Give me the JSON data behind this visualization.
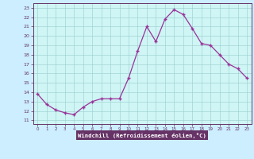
{
  "x": [
    0,
    1,
    2,
    3,
    4,
    5,
    6,
    7,
    8,
    9,
    10,
    11,
    12,
    13,
    14,
    15,
    16,
    17,
    18,
    19,
    20,
    21,
    22,
    23
  ],
  "y": [
    13.8,
    12.7,
    12.1,
    11.8,
    11.6,
    12.4,
    13.0,
    13.3,
    13.3,
    13.3,
    15.5,
    18.4,
    21.0,
    19.4,
    21.8,
    22.8,
    22.3,
    20.8,
    19.2,
    19.0,
    18.0,
    17.0,
    16.5,
    15.5
  ],
  "line_color": "#993399",
  "marker_color": "#993399",
  "bg_color": "#cceeff",
  "plot_bg": "#cff5f5",
  "grid_color": "#99cccc",
  "xlabel": "Windchill (Refroidissement éolien,°C)",
  "xlabel_bg": "#663366",
  "xlabel_color": "#ffffff",
  "yticks": [
    11,
    12,
    13,
    14,
    15,
    16,
    17,
    18,
    19,
    20,
    21,
    22,
    23
  ],
  "xticks": [
    0,
    1,
    2,
    3,
    4,
    5,
    6,
    7,
    8,
    9,
    10,
    11,
    12,
    13,
    14,
    15,
    16,
    17,
    18,
    19,
    20,
    21,
    22,
    23
  ],
  "ylim": [
    10.6,
    23.5
  ],
  "xlim": [
    -0.5,
    23.5
  ],
  "tick_color": "#663366",
  "spine_color": "#663366"
}
